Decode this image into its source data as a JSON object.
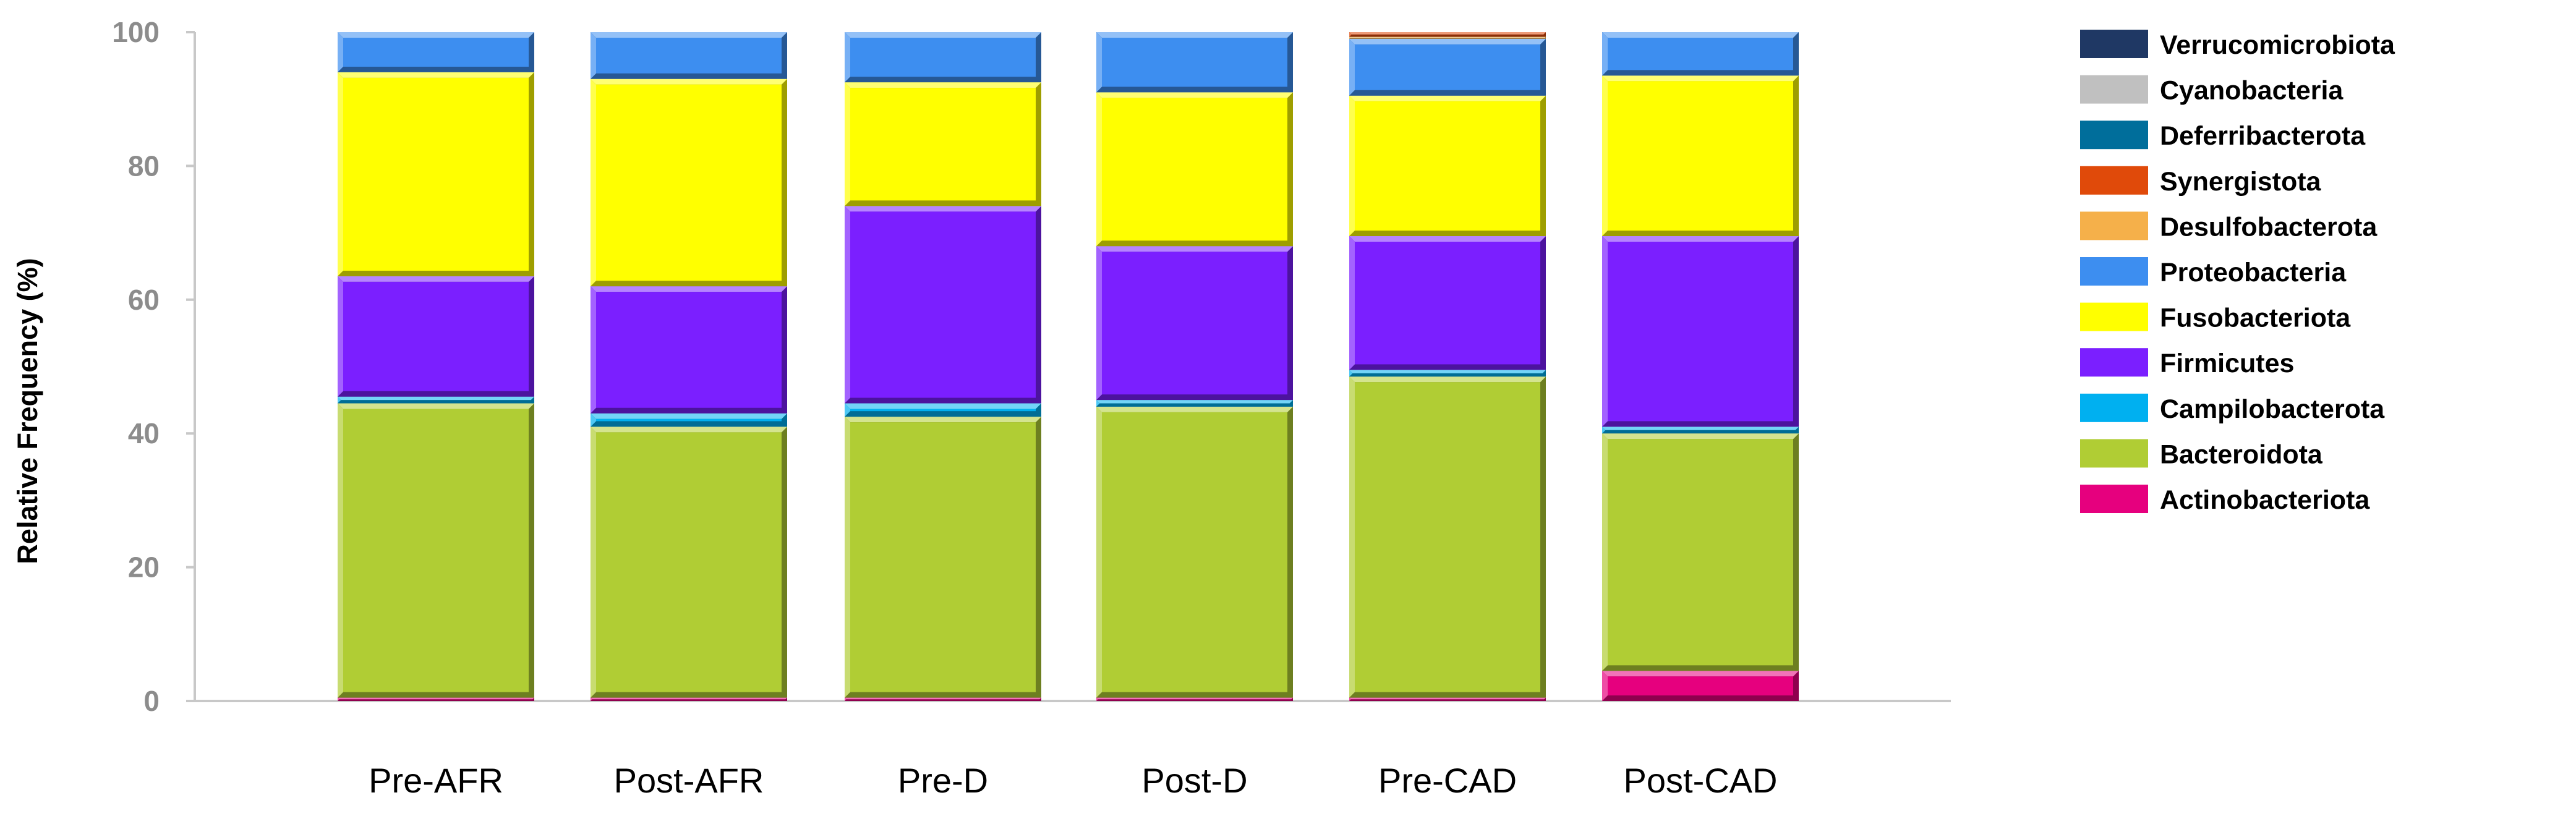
{
  "chart_data": {
    "type": "bar",
    "stacked": true,
    "ylabel": "Relative Frequency (%)",
    "xlabel": "",
    "ylim": [
      0,
      100
    ],
    "y_ticks": [
      0,
      20,
      40,
      60,
      80,
      100
    ],
    "grid": false,
    "legend_position": "right",
    "categories": [
      "Pre-AFR",
      "Post-AFR",
      "Pre-D",
      "Post-D",
      "Pre-CAD",
      "Post-CAD"
    ],
    "series": [
      {
        "name": "Actinobacteriota",
        "color": "#e6007e",
        "values": [
          0.5,
          0.5,
          0.5,
          0.5,
          0.5,
          4.5
        ]
      },
      {
        "name": "Bacteroidota",
        "color": "#b0cd34",
        "values": [
          44.0,
          40.5,
          42.0,
          43.5,
          48.0,
          35.5
        ]
      },
      {
        "name": "Campilobacterota",
        "color": "#00b0f0",
        "values": [
          1.0,
          2.0,
          2.0,
          1.0,
          1.0,
          1.0
        ]
      },
      {
        "name": "Firmicutes",
        "color": "#7b1fff",
        "values": [
          18.0,
          19.0,
          29.5,
          23.0,
          20.0,
          28.5
        ]
      },
      {
        "name": "Fusobacteriota",
        "color": "#ffff00",
        "values": [
          30.5,
          31.0,
          18.5,
          23.0,
          21.0,
          24.0
        ]
      },
      {
        "name": "Proteobacteria",
        "color": "#3d8ef0",
        "values": [
          6.0,
          7.0,
          7.5,
          9.0,
          8.5,
          6.5
        ]
      },
      {
        "name": "Desulfobacterota",
        "color": "#f5b04a",
        "values": [
          0.0,
          0.0,
          0.0,
          0.0,
          0.3,
          0.0
        ]
      },
      {
        "name": "Synergistota",
        "color": "#e04a0a",
        "values": [
          0.0,
          0.0,
          0.0,
          0.0,
          0.7,
          0.0
        ]
      },
      {
        "name": "Deferribacterota",
        "color": "#006e9b",
        "values": [
          0.0,
          0.0,
          0.0,
          0.0,
          0.0,
          0.0
        ]
      },
      {
        "name": "Cyanobacteria",
        "color": "#c0c0c0",
        "values": [
          0.0,
          0.0,
          0.0,
          0.0,
          0.0,
          0.0
        ]
      },
      {
        "name": "Verrucomicrobiota",
        "color": "#1f3864",
        "values": [
          0.0,
          0.0,
          0.0,
          0.0,
          0.0,
          0.0
        ]
      }
    ],
    "legend": [
      "Verrucomicrobiota",
      "Cyanobacteria",
      "Deferribacterota",
      "Synergistota",
      "Desulfobacterota",
      "Proteobacteria",
      "Fusobacteriota",
      "Firmicutes",
      "Campilobacterota",
      "Bacteroidota",
      "Actinobacteriota"
    ]
  }
}
